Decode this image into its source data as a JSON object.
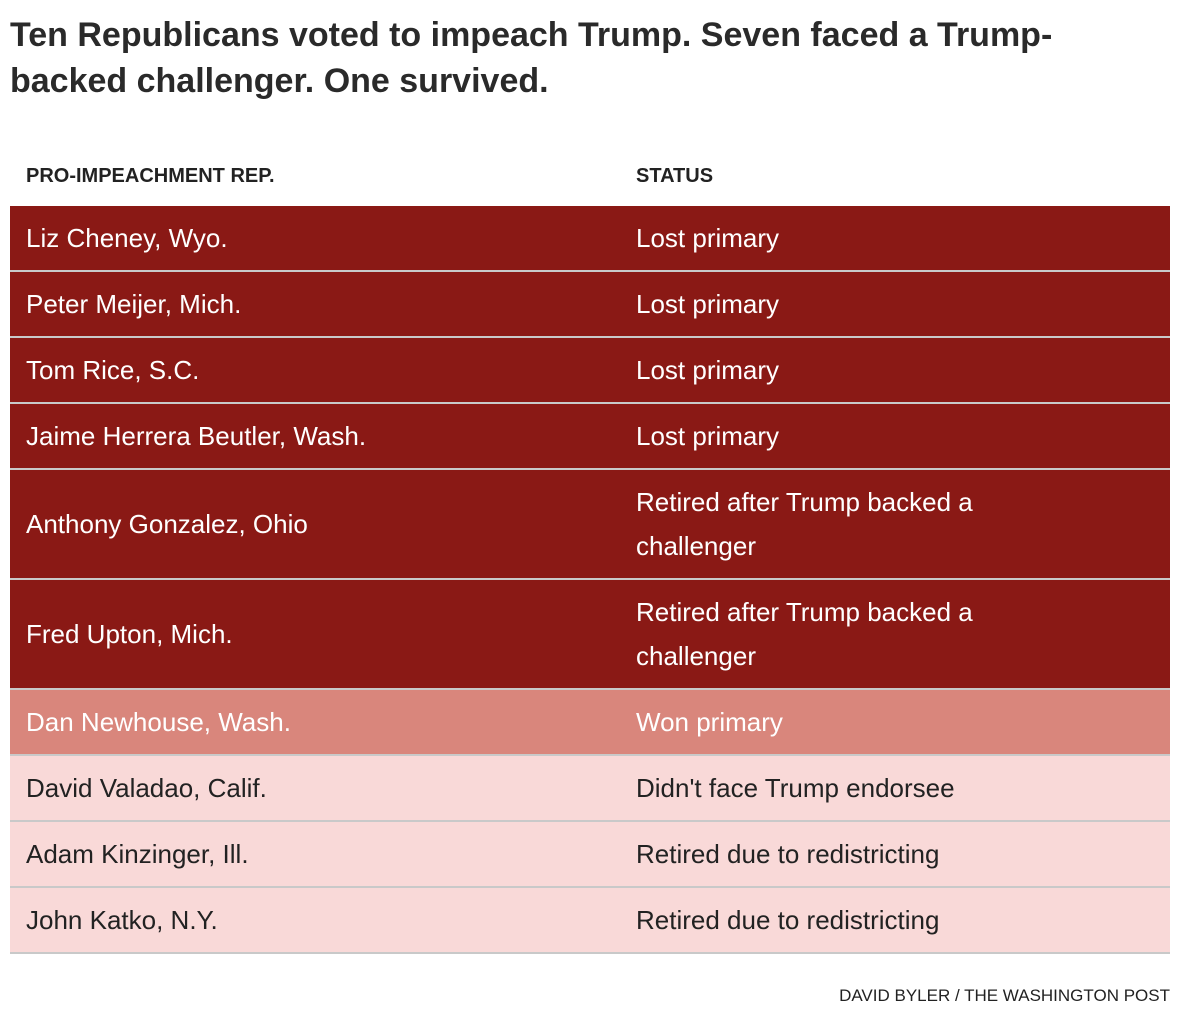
{
  "header": {
    "title": "Ten Republicans voted to impeach Trump. Seven faced a Trump-backed challenger. One survived."
  },
  "table": {
    "columns": [
      "PRO-IMPEACHMENT REP.",
      "STATUS"
    ],
    "rows": [
      {
        "cells": [
          "Liz Cheney, Wyo.",
          "Lost primary"
        ],
        "color": "#8a1915",
        "text_color": "#ffffff"
      },
      {
        "cells": [
          "Peter Meijer, Mich.",
          "Lost primary"
        ],
        "color": "#8a1915",
        "text_color": "#ffffff"
      },
      {
        "cells": [
          "Tom Rice, S.C.",
          "Lost primary"
        ],
        "color": "#8a1915",
        "text_color": "#ffffff"
      },
      {
        "cells": [
          "Jaime Herrera Beutler, Wash.",
          "Lost primary"
        ],
        "color": "#8a1915",
        "text_color": "#ffffff"
      },
      {
        "cells": [
          "Anthony Gonzalez, Ohio",
          "Retired after Trump backed a challenger"
        ],
        "color": "#8a1915",
        "text_color": "#ffffff"
      },
      {
        "cells": [
          "Fred Upton, Mich.",
          "Retired after Trump backed a challenger"
        ],
        "color": "#8a1915",
        "text_color": "#ffffff"
      },
      {
        "cells": [
          "Dan Newhouse, Wash.",
          "Won primary"
        ],
        "color": "#d9867c",
        "text_color": "#ffffff"
      },
      {
        "cells": [
          "David Valadao, Calif.",
          "Didn't face Trump endorsee"
        ],
        "color": "#f9d9d8",
        "text_color": "#222222"
      },
      {
        "cells": [
          "Adam Kinzinger, Ill.",
          "Retired due to redistricting"
        ],
        "color": "#f9d9d8",
        "text_color": "#222222"
      },
      {
        "cells": [
          "John Katko, N.Y.",
          "Retired due to redistricting"
        ],
        "color": "#f9d9d8",
        "text_color": "#222222"
      }
    ]
  },
  "footer": {
    "credit": "DAVID BYLER / THE WASHINGTON POST"
  }
}
